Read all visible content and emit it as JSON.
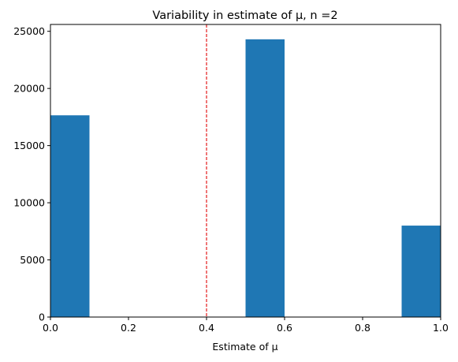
{
  "chart_data": {
    "type": "bar",
    "title": "Variability in estimate of μ, n =2",
    "xlabel": "Estimate of μ",
    "ylabel": "",
    "xlim": [
      0.0,
      1.0
    ],
    "ylim": [
      0,
      25600
    ],
    "xticks": [
      0.0,
      0.2,
      0.4,
      0.6,
      0.8,
      1.0
    ],
    "xtick_labels": [
      "0.0",
      "0.2",
      "0.4",
      "0.6",
      "0.8",
      "1.0"
    ],
    "yticks": [
      0,
      5000,
      10000,
      15000,
      20000,
      25000
    ],
    "ytick_labels": [
      "0",
      "5000",
      "10000",
      "15000",
      "20000",
      "25000"
    ],
    "bins": [
      {
        "x0": 0.0,
        "x1": 0.1,
        "count": 17650
      },
      {
        "x0": 0.5,
        "x1": 0.6,
        "count": 24300
      },
      {
        "x0": 0.9,
        "x1": 1.0,
        "count": 8000
      }
    ],
    "reference_line": {
      "x": 0.4,
      "style": "dashed"
    },
    "bar_color": "#1f77b4",
    "line_color": "#e41a1c",
    "grid": false,
    "legend": "none"
  }
}
